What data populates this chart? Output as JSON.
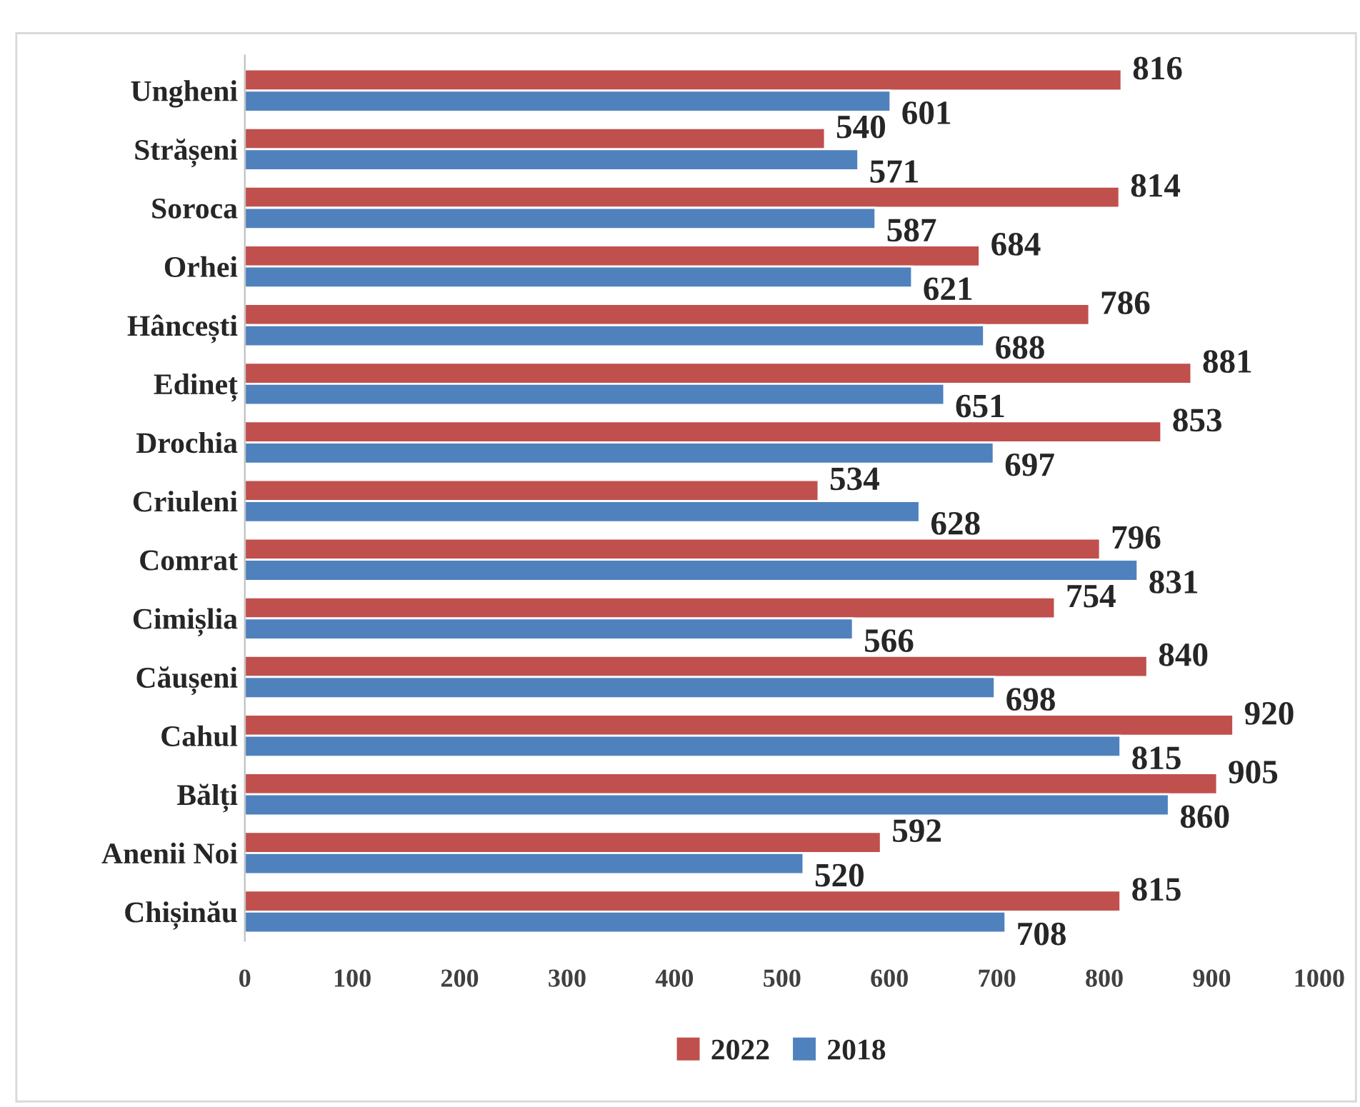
{
  "chart_data": {
    "type": "bar",
    "orientation": "horizontal",
    "categories": [
      "Ungheni",
      "Strășeni",
      "Soroca",
      "Orhei",
      "Hâncești",
      "Edineț",
      "Drochia",
      "Criuleni",
      "Comrat",
      "Cimișlia",
      "Căușeni",
      "Cahul",
      "Bălți",
      "Anenii Noi",
      "Chișinău"
    ],
    "series": [
      {
        "name": "2022",
        "color": "#c0504d",
        "values": [
          816,
          540,
          814,
          684,
          786,
          881,
          853,
          534,
          796,
          754,
          840,
          920,
          905,
          592,
          815
        ]
      },
      {
        "name": "2018",
        "color": "#4f81bd",
        "values": [
          601,
          571,
          587,
          621,
          688,
          651,
          697,
          628,
          831,
          566,
          698,
          815,
          860,
          520,
          708
        ]
      }
    ],
    "xlim": [
      0,
      1000
    ],
    "xticks": [
      0,
      100,
      200,
      300,
      400,
      500,
      600,
      700,
      800,
      900,
      1000
    ],
    "data_labels": true,
    "grid": false,
    "legend": "bottom"
  }
}
